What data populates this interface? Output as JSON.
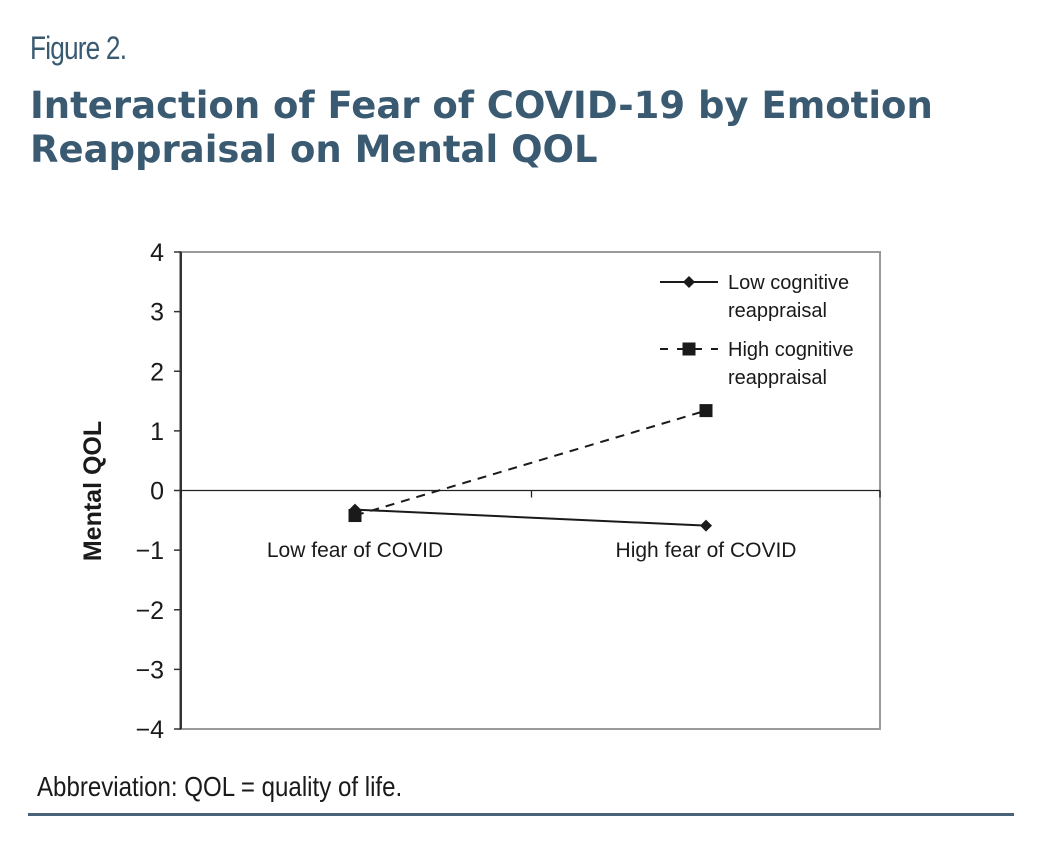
{
  "figure": {
    "label": "Figure 2.",
    "title": "Interaction of Fear of COVID-19 by Emotion Reappraisal on Mental QOL",
    "note": "Abbreviation: QOL = quality of life.",
    "colors": {
      "title": "#3a5a72",
      "rule": "#4a6278",
      "ink": "#1a1a1a",
      "frame": "#999999"
    }
  },
  "chart_data": {
    "type": "line",
    "title": "Interaction of Fear of COVID-19 by Emotion Reappraisal on Mental QOL",
    "xlabel": "",
    "ylabel": "Mental QOL",
    "categories": [
      "Low fear of COVID",
      "High fear of COVID"
    ],
    "ylim": [
      -4,
      4
    ],
    "yticks": [
      4,
      3,
      2,
      1,
      0,
      -1,
      -2,
      -3,
      -4
    ],
    "ytick_labels": [
      "4",
      "3",
      "2",
      "1",
      "0",
      "−1",
      "−2",
      "−3",
      "−4"
    ],
    "grid": false,
    "legend_position": "top-right",
    "series": [
      {
        "name": "Low cognitive reappraisal",
        "legend_lines": [
          "Low cognitive",
          "reappraisal"
        ],
        "style": "solid",
        "marker": "diamond",
        "values": [
          -0.32,
          -0.59
        ]
      },
      {
        "name": "High cognitive reappraisal",
        "legend_lines": [
          "High cognitive",
          "reappraisal"
        ],
        "style": "dashed",
        "marker": "square",
        "values": [
          -0.42,
          1.34
        ]
      }
    ]
  }
}
